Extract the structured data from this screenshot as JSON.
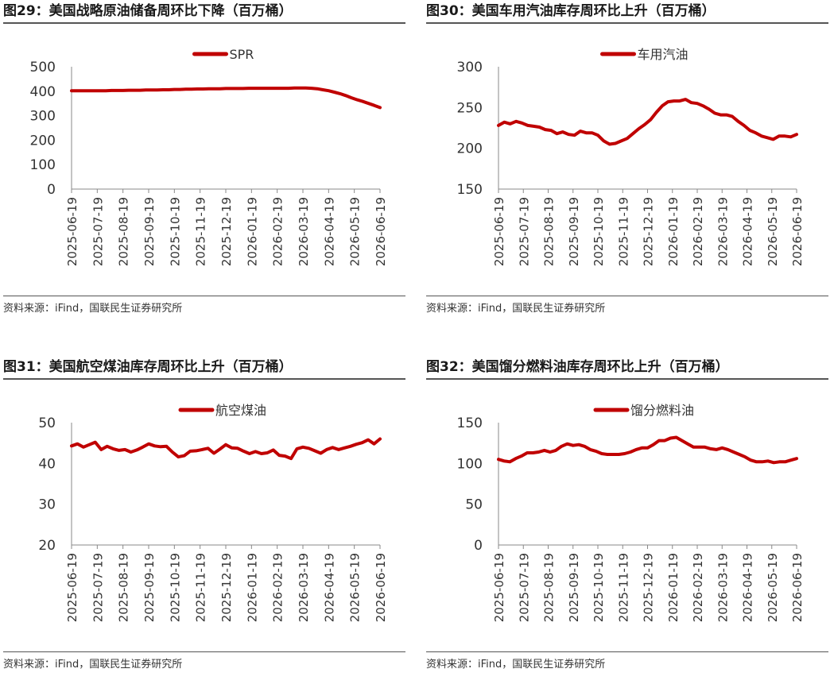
{
  "colors": {
    "series": "#c00000",
    "axis": "#888888",
    "text": "#333333"
  },
  "panels": [
    {
      "title": "图29：美国战略原油储备周环比下降（百万桶）",
      "source": "资料来源：iFind，国联民生证券研究所"
    },
    {
      "title": "图30：美国车用汽油库存周环比上升（百万桶）",
      "source": "资料来源：iFind，国联民生证券研究所"
    },
    {
      "title": "图31：美国航空煤油库存周环比上升（百万桶）",
      "source": "资料来源：iFind，国联民生证券研究所"
    },
    {
      "title": "图32：美国馏分燃料油库存周环比上升（百万桶）",
      "source": "资料来源：iFind，国联民生证券研究所"
    }
  ],
  "chart_data": [
    {
      "type": "line",
      "legend_position": "top-center",
      "grid": false,
      "x_ticks": [
        "2025-06-19",
        "2025-07-19",
        "2025-08-19",
        "2025-09-19",
        "2025-10-19",
        "2025-11-19",
        "2025-12-19",
        "2026-01-19",
        "2026-02-19",
        "2026-03-19",
        "2026-04-19",
        "2026-05-19",
        "2026-06-19"
      ],
      "ylim": [
        0,
        500
      ],
      "y_ticks": [
        0,
        100,
        200,
        300,
        400,
        500
      ],
      "series": [
        {
          "name": "SPR",
          "values": [
            402,
            402,
            402,
            402,
            402,
            402,
            402,
            403,
            403,
            403,
            404,
            404,
            404,
            405,
            405,
            405,
            406,
            406,
            407,
            407,
            408,
            408,
            409,
            409,
            410,
            410,
            410,
            411,
            411,
            411,
            411,
            412,
            412,
            412,
            412,
            412,
            412,
            412,
            412,
            413,
            413,
            413,
            412,
            410,
            406,
            402,
            396,
            390,
            382,
            373,
            365,
            358,
            350,
            342,
            333
          ]
        }
      ]
    },
    {
      "type": "line",
      "legend_position": "top-center",
      "grid": false,
      "x_ticks": [
        "2025-06-19",
        "2025-07-19",
        "2025-08-19",
        "2025-09-19",
        "2025-10-19",
        "2025-11-19",
        "2025-12-19",
        "2026-01-19",
        "2026-02-19",
        "2026-03-19",
        "2026-04-19",
        "2026-05-19",
        "2026-06-19"
      ],
      "ylim": [
        150,
        300
      ],
      "y_ticks": [
        150,
        200,
        250,
        300
      ],
      "series": [
        {
          "name": "车用汽油",
          "values": [
            228,
            232,
            230,
            233,
            231,
            228,
            227,
            226,
            223,
            222,
            218,
            220,
            217,
            216,
            221,
            219,
            219,
            216,
            209,
            205,
            206,
            209,
            212,
            218,
            224,
            229,
            235,
            244,
            252,
            257,
            258,
            258,
            260,
            256,
            255,
            252,
            248,
            243,
            241,
            241,
            239,
            233,
            228,
            222,
            219,
            215,
            213,
            211,
            215,
            215,
            214,
            217
          ]
        }
      ]
    },
    {
      "type": "line",
      "legend_position": "top-center",
      "grid": false,
      "x_ticks": [
        "2025-06-19",
        "2025-07-19",
        "2025-08-19",
        "2025-09-19",
        "2025-10-19",
        "2025-11-19",
        "2025-12-19",
        "2026-01-19",
        "2026-02-19",
        "2026-03-19",
        "2026-04-19",
        "2026-05-19",
        "2026-06-19"
      ],
      "ylim": [
        20,
        50
      ],
      "y_ticks": [
        20,
        30,
        40,
        50
      ],
      "series": [
        {
          "name": "航空煤油",
          "values": [
            44.3,
            44.8,
            44.0,
            44.6,
            45.2,
            43.4,
            44.2,
            43.6,
            43.2,
            43.4,
            42.8,
            43.3,
            44.0,
            44.8,
            44.3,
            44.1,
            44.2,
            42.8,
            41.6,
            41.9,
            43.0,
            43.1,
            43.4,
            43.7,
            42.5,
            43.5,
            44.6,
            43.8,
            43.7,
            43.0,
            42.4,
            42.9,
            42.4,
            42.6,
            43.3,
            42.0,
            41.8,
            41.2,
            43.6,
            44.0,
            43.7,
            43.1,
            42.5,
            43.4,
            43.9,
            43.4,
            43.8,
            44.2,
            44.7,
            45.1,
            45.8,
            44.8,
            46.0
          ]
        }
      ]
    },
    {
      "type": "line",
      "legend_position": "top-center",
      "grid": false,
      "x_ticks": [
        "2025-06-19",
        "2025-07-19",
        "2025-08-19",
        "2025-09-19",
        "2025-10-19",
        "2025-11-19",
        "2025-12-19",
        "2026-01-19",
        "2026-02-19",
        "2026-03-19",
        "2026-04-19",
        "2026-05-19",
        "2026-06-19"
      ],
      "ylim": [
        0,
        150
      ],
      "y_ticks": [
        0,
        50,
        100,
        150
      ],
      "series": [
        {
          "name": "馏分燃料油",
          "values": [
            105,
            103,
            102,
            106,
            109,
            113,
            113,
            114,
            116,
            114,
            116,
            121,
            124,
            122,
            123,
            121,
            117,
            115,
            112,
            111,
            111,
            111,
            112,
            114,
            117,
            119,
            119,
            123,
            128,
            128,
            131,
            132,
            128,
            124,
            120,
            120,
            120,
            118,
            117,
            119,
            117,
            114,
            111,
            108,
            104,
            102,
            102,
            103,
            101,
            102,
            102,
            104,
            106
          ]
        }
      ]
    }
  ]
}
